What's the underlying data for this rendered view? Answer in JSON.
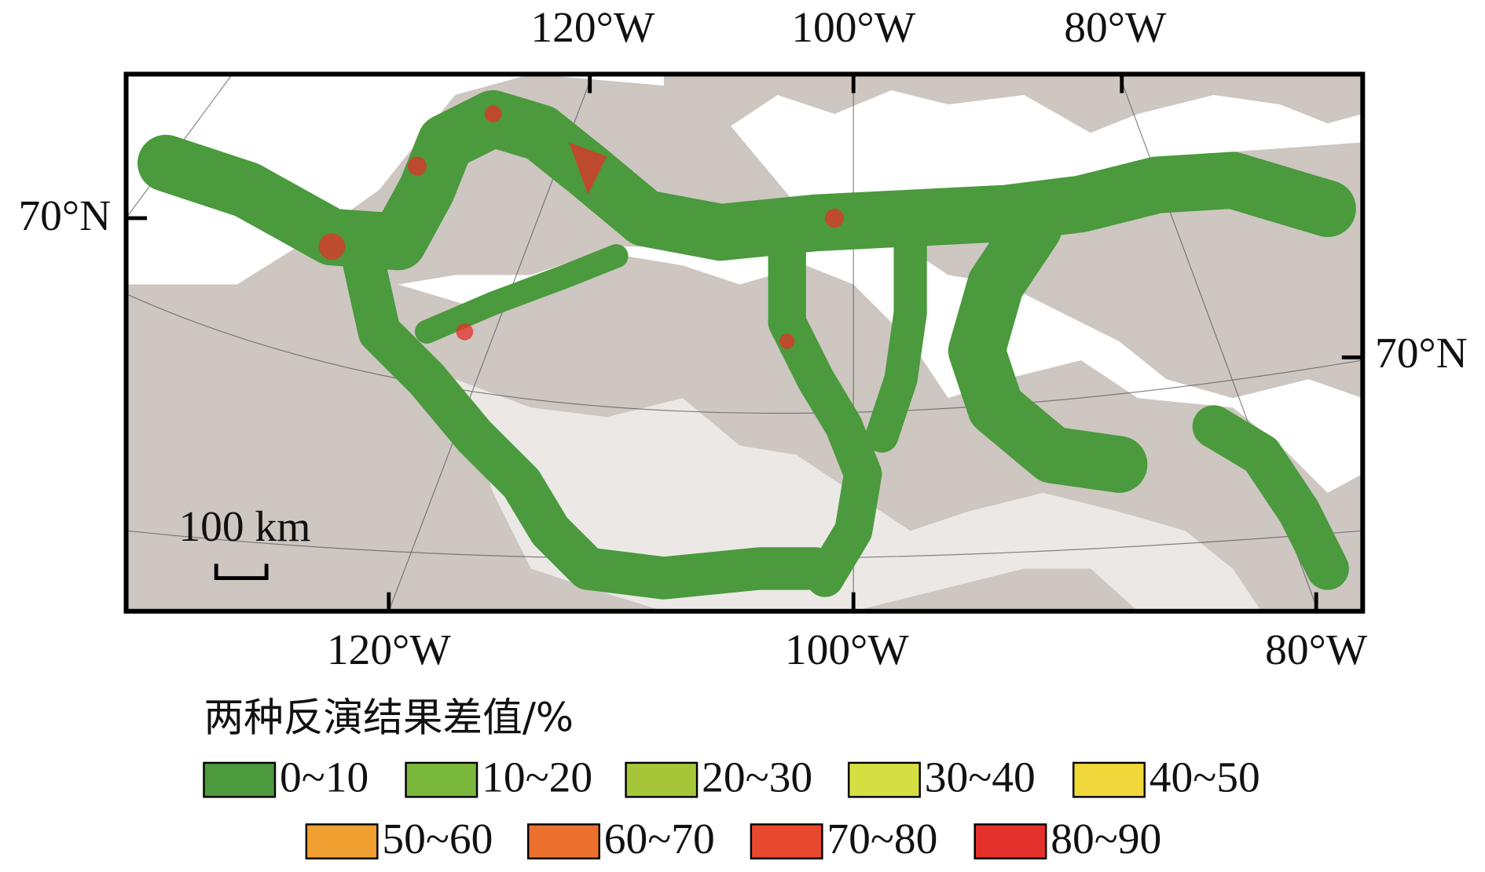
{
  "map": {
    "top_axis_labels": [
      "120°W",
      "100°W",
      "80°W"
    ],
    "bottom_axis_labels": [
      "120°W",
      "100°W",
      "80°W"
    ],
    "left_axis_labels": [
      "70°N"
    ],
    "right_axis_labels": [
      "70°N"
    ],
    "scale_bar": "100 km",
    "legend": {
      "title": "两种反演结果差值/%",
      "items": [
        {
          "label": "0~10",
          "color": "#4b9a3d"
        },
        {
          "label": "10~20",
          "color": "#7ab83b"
        },
        {
          "label": "20~30",
          "color": "#a6c63a"
        },
        {
          "label": "30~40",
          "color": "#d5df42"
        },
        {
          "label": "40~50",
          "color": "#f1d83a"
        },
        {
          "label": "50~60",
          "color": "#f0a030"
        },
        {
          "label": "60~70",
          "color": "#ec712f"
        },
        {
          "label": "70~80",
          "color": "#e8492e"
        },
        {
          "label": "80~90",
          "color": "#e3302a"
        }
      ]
    }
  }
}
